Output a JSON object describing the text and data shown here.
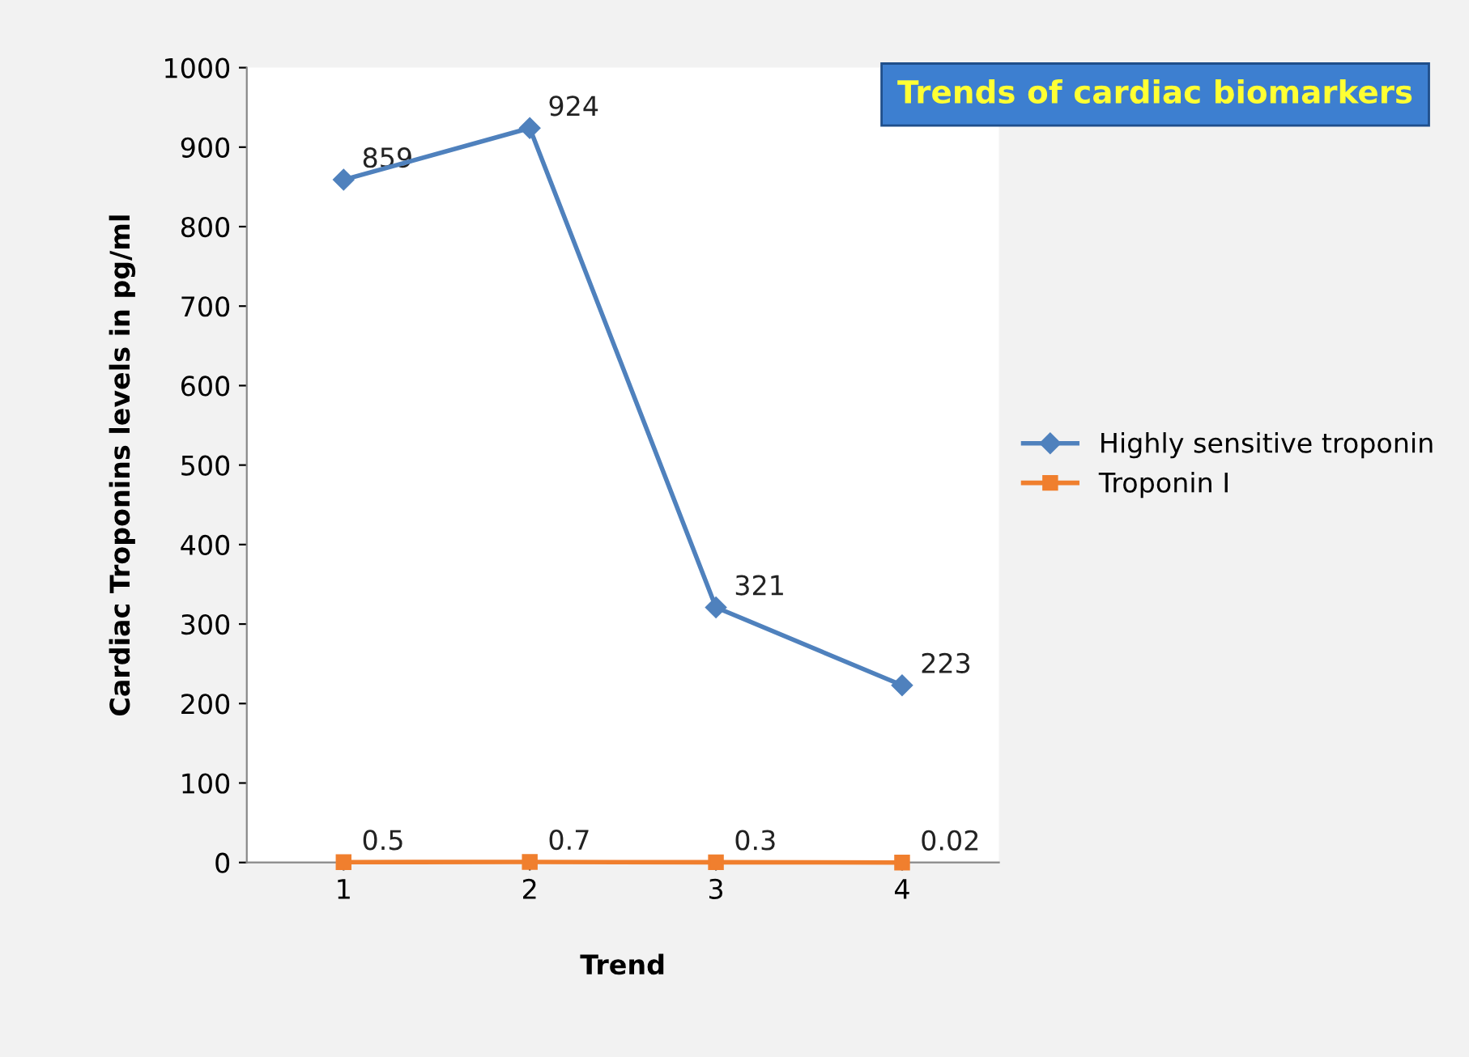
{
  "chart_data": {
    "type": "line",
    "title": "Trends of cardiac biomarkers",
    "xlabel": "Trend",
    "ylabel": "Cardiac Troponins levels in pg/ml",
    "categories": [
      "1",
      "2",
      "3",
      "4"
    ],
    "series": [
      {
        "name": "Highly sensitive troponin",
        "color": "#4f81bd",
        "marker": "diamond",
        "values": [
          859,
          924,
          321,
          223
        ]
      },
      {
        "name": "Troponin I",
        "color": "#f07f2e",
        "marker": "square",
        "values": [
          0.5,
          0.7,
          0.3,
          0.02
        ]
      }
    ],
    "ylim": [
      0,
      1000
    ],
    "yticks": [
      0,
      100,
      200,
      300,
      400,
      500,
      600,
      700,
      800,
      900,
      1000
    ],
    "data_labels": true,
    "grid": false,
    "legend": "right",
    "line_style": "solid"
  }
}
